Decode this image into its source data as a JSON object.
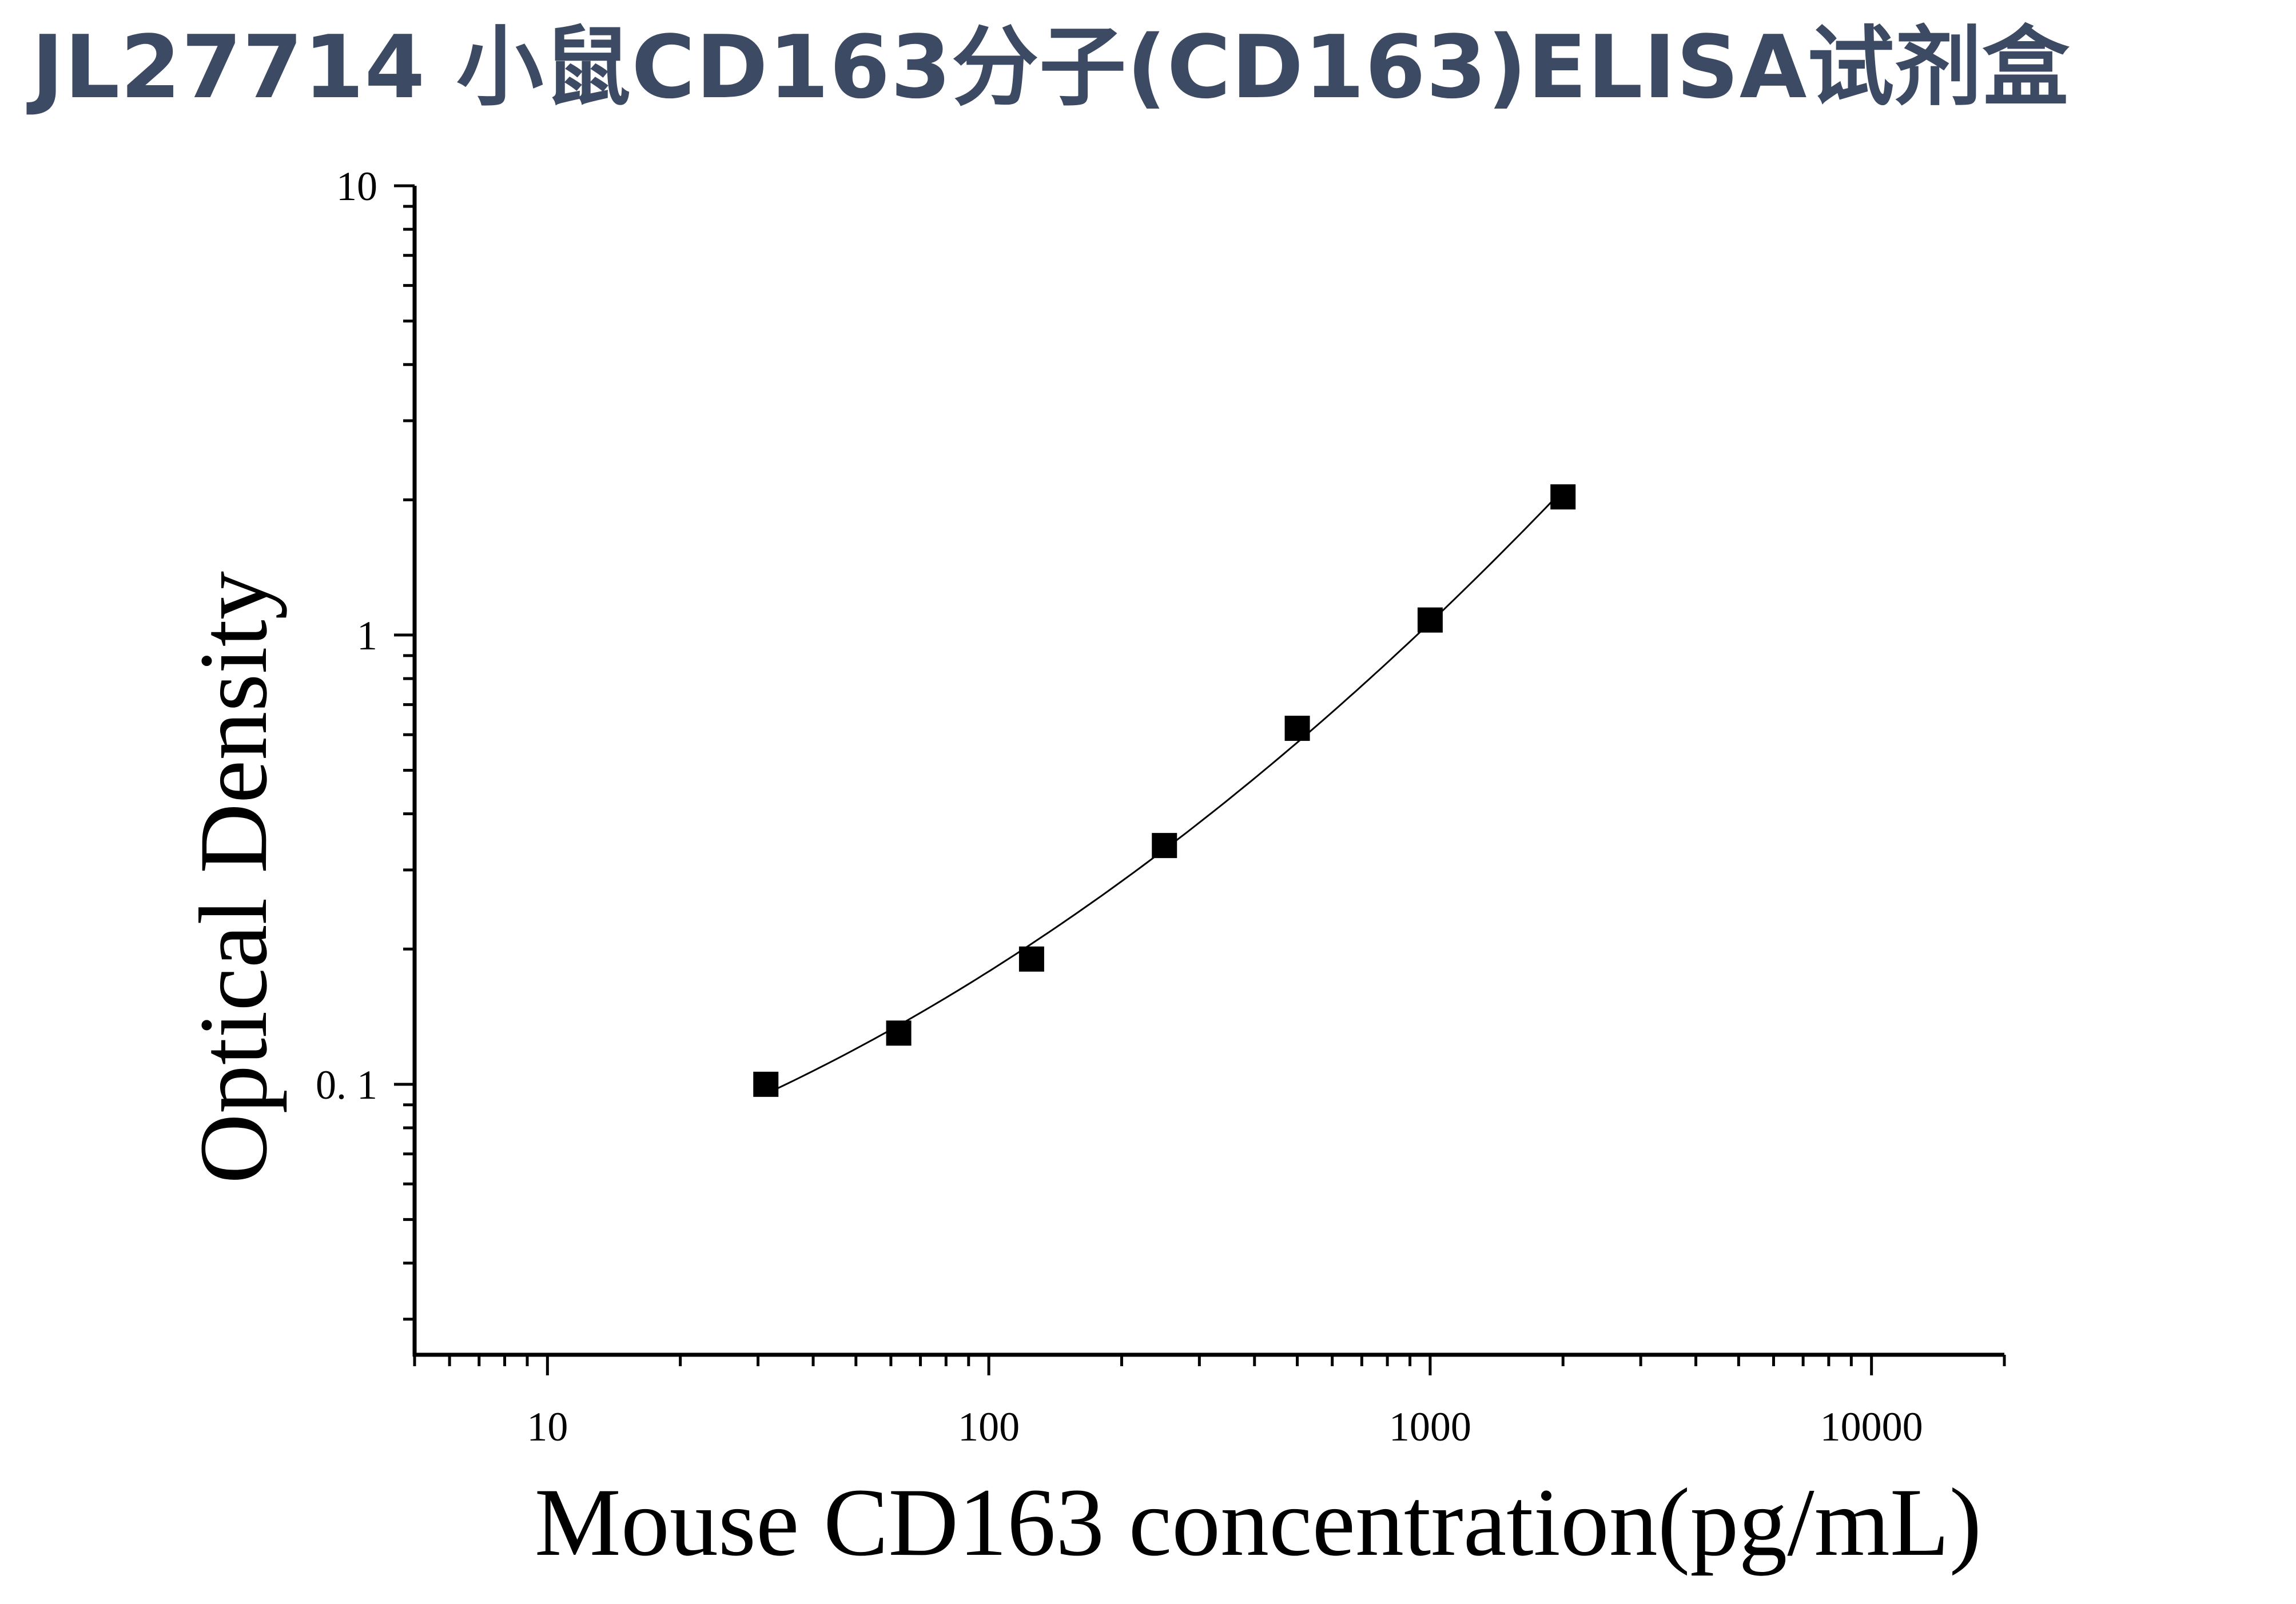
{
  "title": "JL27714 小鼠CD163分子(CD163)ELISA试剂盒",
  "chart_data": {
    "type": "scatter",
    "title": "JL27714 小鼠CD163分子(CD163)ELISA试剂盒",
    "xlabel": "Mouse CD163 concentration(pg/mL)",
    "ylabel": "Optical Density",
    "xscale": "log",
    "yscale": "log",
    "xlim": [
      5,
      20000
    ],
    "ylim": [
      0.025,
      10
    ],
    "x_ticks": [
      10,
      100,
      1000,
      10000
    ],
    "x_tick_labels": [
      "10",
      "100",
      "1000",
      "10000"
    ],
    "y_ticks": [
      0.1,
      1,
      10
    ],
    "y_tick_labels": [
      "0. 1",
      "1",
      "10"
    ],
    "grid": false,
    "legend": "none",
    "marker": "square",
    "marker_color": "#000000",
    "fit_curve": true,
    "x": [
      31.25,
      62.5,
      125,
      250,
      500,
      1000,
      2000
    ],
    "y": [
      0.1,
      0.13,
      0.19,
      0.34,
      0.62,
      1.08,
      2.03
    ]
  }
}
